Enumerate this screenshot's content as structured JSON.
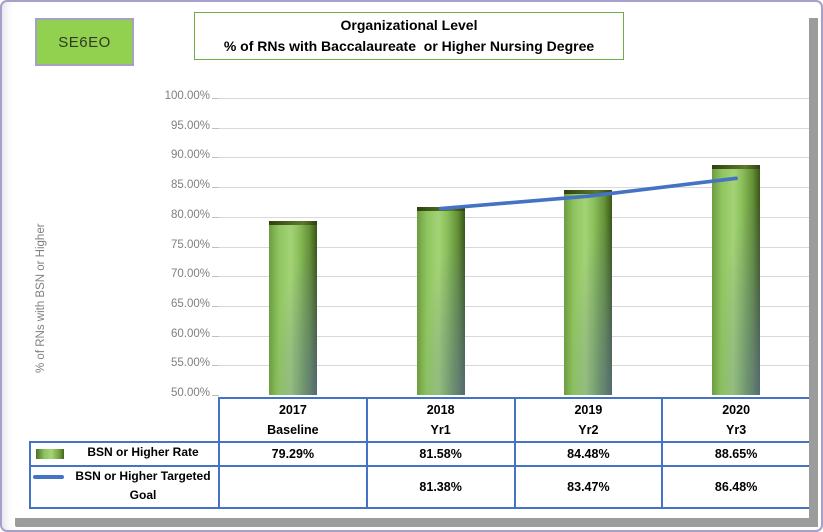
{
  "badge": {
    "label": "SE6EO",
    "bg_color": "#92D050"
  },
  "title": {
    "line1": "Organizational Level",
    "line2": "% of RNs with Baccalaureate  or Higher Nursing Degree"
  },
  "y_axis": {
    "title": "% of RNs with BSN or Higher",
    "tick_labels": [
      "100.00%",
      "95.00%",
      "90.00%",
      "85.00%",
      "80.00%",
      "75.00%",
      "70.00%",
      "65.00%",
      "60.00%",
      "55.00%",
      "50.00%"
    ],
    "max": 100,
    "min": 50,
    "step": 5
  },
  "chart_data": {
    "type": "bar",
    "title": "Organizational Level - % of RNs with Baccalaureate or Higher Nursing Degree",
    "xlabel": "",
    "ylabel": "% of RNs with BSN or Higher",
    "ylim": [
      50,
      100
    ],
    "ytick_step": 5,
    "grid": true,
    "legend_position": "table-left-below-chart",
    "categories": [
      "2017 Baseline",
      "2018 Yr1",
      "2019 Yr2",
      "2020 Yr3"
    ],
    "category_lines": [
      [
        "2017",
        "Baseline"
      ],
      [
        "2018",
        "Yr1"
      ],
      [
        "2019",
        "Yr2"
      ],
      [
        "2020",
        "Yr3"
      ]
    ],
    "series": [
      {
        "name": "BSN or Higher  Rate",
        "name_lines": [
          "BSN or Higher  Rate"
        ],
        "type": "bar",
        "color": "#8CC05C",
        "values": [
          79.29,
          81.58,
          84.48,
          88.65
        ],
        "display_values": [
          "79.29%",
          "81.58%",
          "84.48%",
          "88.65%"
        ]
      },
      {
        "name": "BSN or Higher Targeted Goal",
        "name_lines": [
          "BSN or Higher Targeted",
          "Goal"
        ],
        "type": "line",
        "color": "#4472C4",
        "values": [
          null,
          81.38,
          83.47,
          86.48
        ],
        "display_values": [
          "",
          "81.38%",
          "83.47%",
          "86.48%"
        ]
      }
    ]
  },
  "colors": {
    "badge_green": "#92D050",
    "title_border_green": "#70AD47",
    "table_border_blue": "#4472C4",
    "goal_line_blue": "#4472C4",
    "gridline_gray": "#D9D9D9",
    "axis_text_gray": "#7F7F7F",
    "bar_green_light": "#A4D276",
    "bar_green_dark": "#44651F",
    "frame_border_purple": "#A79FCB",
    "drop_shadow_gray": "#9C9C9C"
  }
}
